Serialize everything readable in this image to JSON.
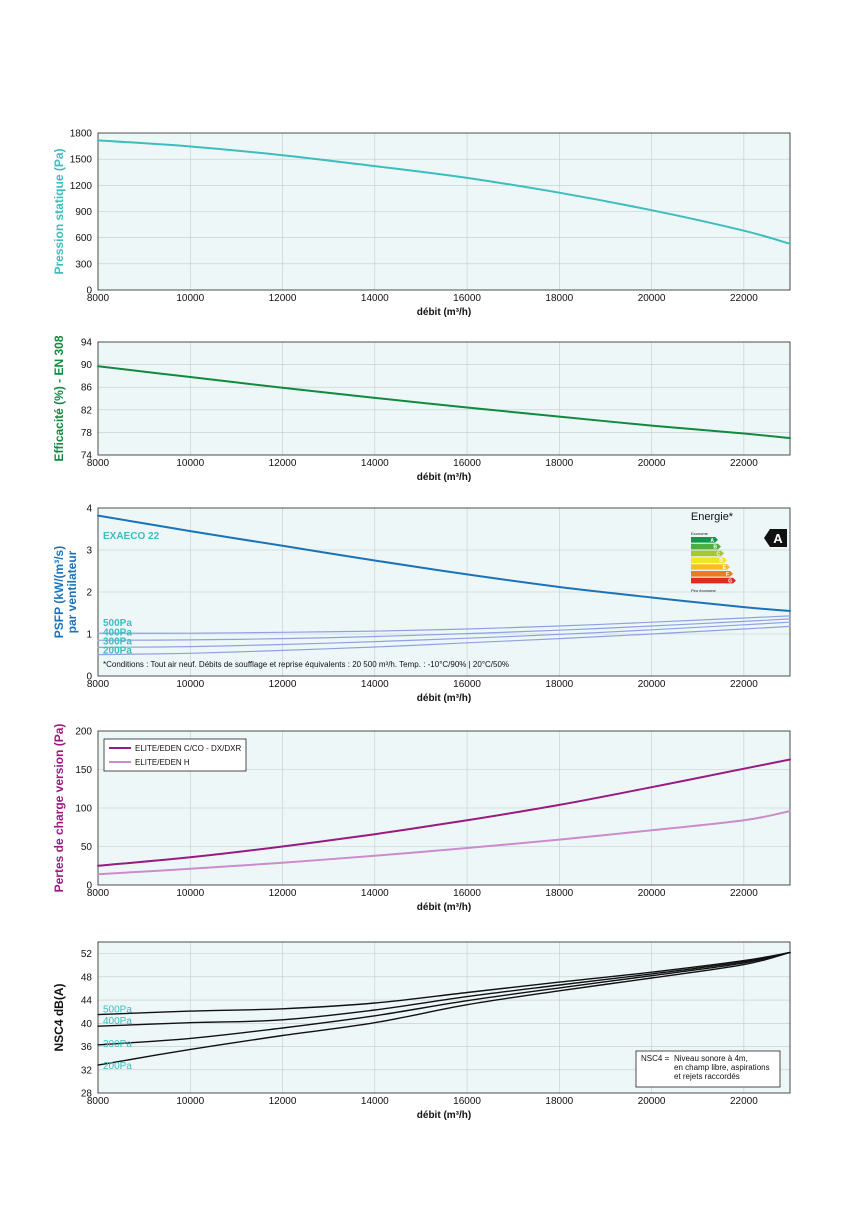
{
  "colors": {
    "plot_bg": "#edf7f8",
    "grid": "#c5c9cc",
    "teal": "#3dbdbd",
    "green": "#108a3e",
    "blue": "#1a73b8",
    "lavender": "#8fa2e0",
    "purple": "#991a80",
    "pink": "#cc8ccc",
    "black": "#111111"
  },
  "chart_data": [
    {
      "type": "line",
      "xlabel": "débit (m³/h)",
      "ylabel": "Pression statique (Pa)",
      "ylabel_color": "#3dbdbd",
      "xlim": [
        8000,
        23000
      ],
      "ylim": [
        0,
        1800
      ],
      "xticks": [
        8000,
        10000,
        12000,
        14000,
        16000,
        18000,
        20000,
        22000
      ],
      "yticks": [
        0,
        300,
        600,
        900,
        1200,
        1500,
        1800
      ],
      "grid": true,
      "series": [
        {
          "color": "#3dbdbd",
          "x": [
            8000,
            10000,
            12000,
            14000,
            16000,
            18000,
            20000,
            22000,
            23000
          ],
          "y": [
            1715,
            1645,
            1545,
            1420,
            1285,
            1115,
            915,
            680,
            530
          ]
        }
      ]
    },
    {
      "type": "line",
      "xlabel": "débit (m³/h)",
      "ylabel": "Efficacité (%) - EN 308",
      "ylabel_color": "#108a3e",
      "xlim": [
        8000,
        23000
      ],
      "ylim": [
        74,
        94
      ],
      "xticks": [
        8000,
        10000,
        12000,
        14000,
        16000,
        18000,
        20000,
        22000
      ],
      "yticks": [
        74,
        78,
        82,
        86,
        90,
        94
      ],
      "grid": true,
      "series": [
        {
          "color": "#108a3e",
          "x": [
            8000,
            10000,
            12000,
            14000,
            16000,
            18000,
            20000,
            22000,
            23000
          ],
          "y": [
            89.7,
            87.8,
            85.9,
            84.1,
            82.4,
            80.8,
            79.2,
            77.8,
            77.0
          ]
        }
      ]
    },
    {
      "type": "line",
      "xlabel": "débit (m³/h)",
      "ylabel": [
        "PSFP (kW/(m³/s)",
        "par ventilateur"
      ],
      "ylabel_color": "#1a73b8",
      "xlim": [
        8000,
        23000
      ],
      "ylim": [
        0,
        4
      ],
      "xticks": [
        8000,
        10000,
        12000,
        14000,
        16000,
        18000,
        20000,
        22000
      ],
      "yticks": [
        0,
        1,
        2,
        3,
        4
      ],
      "grid": true,
      "annotations": [
        {
          "text": "EXAECO 22",
          "color": "#3dbdbd"
        },
        {
          "text": "*Conditions : Tout air neuf. Débits de soufflage et reprise équivalents : 20 500 m³/h. Temp. : -10°C/90% | 20°C/50%",
          "color": "#111111"
        }
      ],
      "energy_label": {
        "title": "Energie*",
        "top": "Econome",
        "bottom": "Peu économe",
        "rating": "A",
        "classes": [
          "A",
          "B",
          "C",
          "D",
          "E",
          "F",
          "G"
        ],
        "class_colors": [
          "#14964a",
          "#4caf3c",
          "#a5c72f",
          "#f0e61e",
          "#f5c01e",
          "#ed7a1e",
          "#e02a20"
        ]
      },
      "series": [
        {
          "color": "#1a73b8",
          "label": "",
          "x": [
            8000,
            10000,
            12000,
            14000,
            16000,
            18000,
            20000,
            22000,
            23000
          ],
          "y": [
            3.82,
            3.45,
            3.1,
            2.75,
            2.42,
            2.12,
            1.87,
            1.64,
            1.55
          ]
        },
        {
          "color": "#8fa2e0",
          "label": "500Pa",
          "x": [
            8000,
            10000,
            12000,
            14000,
            16000,
            18000,
            20000,
            22000,
            23000
          ],
          "y": [
            1.02,
            1.02,
            1.04,
            1.07,
            1.12,
            1.19,
            1.28,
            1.38,
            1.43
          ]
        },
        {
          "color": "#8fa2e0",
          "label": "400Pa",
          "x": [
            8000,
            10000,
            12000,
            14000,
            16000,
            18000,
            20000,
            22000,
            23000
          ],
          "y": [
            0.85,
            0.86,
            0.89,
            0.94,
            1.01,
            1.09,
            1.19,
            1.3,
            1.36
          ]
        },
        {
          "color": "#8fa2e0",
          "label": "300Pa",
          "x": [
            8000,
            10000,
            12000,
            14000,
            16000,
            18000,
            20000,
            22000,
            23000
          ],
          "y": [
            0.68,
            0.7,
            0.75,
            0.82,
            0.9,
            0.99,
            1.1,
            1.22,
            1.28
          ]
        },
        {
          "color": "#8fa2e0",
          "label": "200Pa",
          "x": [
            8000,
            10000,
            12000,
            14000,
            16000,
            18000,
            20000,
            22000,
            23000
          ],
          "y": [
            0.51,
            0.54,
            0.61,
            0.69,
            0.79,
            0.89,
            1.0,
            1.12,
            1.18
          ]
        }
      ]
    },
    {
      "type": "line",
      "xlabel": "débit (m³/h)",
      "ylabel": "Pertes de charge version (Pa)",
      "ylabel_color": "#991a80",
      "xlim": [
        8000,
        23000
      ],
      "ylim": [
        0,
        200
      ],
      "xticks": [
        8000,
        10000,
        12000,
        14000,
        16000,
        18000,
        20000,
        22000
      ],
      "yticks": [
        0,
        50,
        100,
        150,
        200
      ],
      "grid": true,
      "legend_position": "top-left",
      "series": [
        {
          "name": "ELITE/EDEN C/CO - DX/DXR",
          "color": "#991a80",
          "x": [
            8000,
            10000,
            12000,
            14000,
            16000,
            18000,
            20000,
            22000,
            23000
          ],
          "y": [
            25,
            36,
            50,
            66,
            84,
            104,
            127,
            151,
            163
          ]
        },
        {
          "name": "ELITE/EDEN H",
          "color": "#cc8ccc",
          "x": [
            8000,
            10000,
            12000,
            14000,
            16000,
            18000,
            20000,
            22000,
            23000
          ],
          "y": [
            14,
            21,
            29,
            38,
            48,
            59,
            71,
            84,
            96
          ]
        }
      ]
    },
    {
      "type": "line",
      "xlabel": "débit (m³/h)",
      "ylabel": "NSC4 dB(A)",
      "ylabel_color": "#111111",
      "xlim": [
        8000,
        23000
      ],
      "ylim": [
        28,
        54
      ],
      "xticks": [
        8000,
        10000,
        12000,
        14000,
        16000,
        18000,
        20000,
        22000
      ],
      "yticks": [
        28,
        32,
        36,
        40,
        44,
        48,
        52
      ],
      "grid": true,
      "note": {
        "key": "NSC4 =",
        "lines": [
          "Niveau sonore à 4m,",
          "en champ libre, aspirations",
          "et rejets raccordés"
        ]
      },
      "series": [
        {
          "color": "#111111",
          "label": "500Pa",
          "x": [
            8000,
            10000,
            12000,
            14000,
            16000,
            18000,
            20000,
            22000,
            23000
          ],
          "y": [
            41.5,
            42.1,
            42.5,
            43.5,
            45.3,
            47.1,
            48.8,
            50.8,
            52.2
          ]
        },
        {
          "color": "#111111",
          "label": "400Pa",
          "x": [
            8000,
            10000,
            12000,
            14000,
            16000,
            18000,
            20000,
            22000,
            23000
          ],
          "y": [
            39.5,
            40.1,
            40.6,
            42.3,
            44.6,
            46.6,
            48.5,
            50.6,
            52.2
          ]
        },
        {
          "color": "#111111",
          "label": "300Pa",
          "x": [
            8000,
            10000,
            12000,
            14000,
            16000,
            18000,
            20000,
            22000,
            23000
          ],
          "y": [
            36.3,
            37.4,
            39.2,
            41.3,
            43.9,
            46.1,
            48.2,
            50.4,
            52.2
          ]
        },
        {
          "color": "#111111",
          "label": "200Pa",
          "x": [
            8000,
            10000,
            12000,
            14000,
            16000,
            18000,
            20000,
            22000,
            23000
          ],
          "y": [
            32.8,
            35.5,
            37.9,
            40.1,
            43.2,
            45.6,
            47.8,
            50.1,
            52.2
          ]
        }
      ]
    }
  ]
}
